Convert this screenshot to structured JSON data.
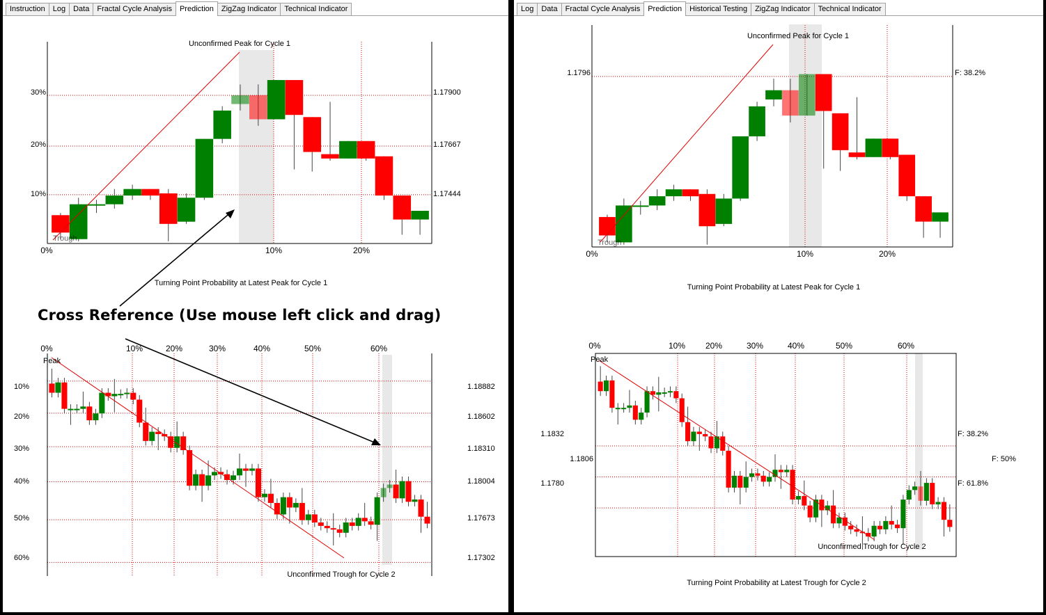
{
  "left": {
    "tabs": [
      "Instruction",
      "Log",
      "Data",
      "Fractal Cycle Analysis",
      "Prediction",
      "ZigZag Indicator",
      "Technical Indicator"
    ],
    "active_tab": "Prediction",
    "top_chart": {
      "title": "Unconfirmed Peak for Cycle 1",
      "caption": "Turning Point Probability at Latest Peak for Cycle 1",
      "start_label": "Trough",
      "y_left": [
        "30%",
        "20%",
        "10%"
      ],
      "y_right": [
        "1.17900",
        "1.17667",
        "1.17444"
      ],
      "x_ticks": [
        "0%",
        "10%",
        "20%"
      ]
    },
    "bottom_chart": {
      "title": "Unconfirmed Trough for Cycle 2",
      "start_label": "Peak",
      "x_ticks": [
        "0%",
        "10%",
        "20%",
        "30%",
        "40%",
        "50%",
        "60%"
      ],
      "y_left": [
        "10%",
        "20%",
        "30%",
        "40%",
        "50%",
        "60%"
      ],
      "y_right": [
        "1.18882",
        "1.18602",
        "1.18310",
        "1.18004",
        "1.17673",
        "1.17302"
      ]
    },
    "annotation": "Cross Reference (Use mouse left click and drag)"
  },
  "right": {
    "tabs": [
      "Log",
      "Data",
      "Fractal Cycle Analysis",
      "Prediction",
      "Historical Testing",
      "ZigZag Indicator",
      "Technical Indicator"
    ],
    "active_tab": "Prediction",
    "top_chart": {
      "title": "Unconfirmed Peak for Cycle 1",
      "caption": "Turning Point Probability at Latest Peak for Cycle 1",
      "start_label": "Trough",
      "y_left": [
        "1.1796"
      ],
      "fib": [
        "F: 38.2%"
      ],
      "x_ticks": [
        "0%",
        "10%",
        "20%"
      ]
    },
    "bottom_chart": {
      "title": "Unconfirmed Trough for Cycle 2",
      "caption": "Turning Point Probability at Latest Trough for Cycle 2",
      "start_label": "Peak",
      "x_ticks": [
        "0%",
        "10%",
        "20%",
        "30%",
        "40%",
        "50%",
        "60%"
      ],
      "y_left": [
        "1.1832",
        "1.1806",
        "1.1780"
      ],
      "fib": [
        "F: 38.2%",
        "F: 50%",
        "F: 61.8%"
      ]
    }
  },
  "colors": {
    "bull": "#008000",
    "bear": "#ff0000",
    "grid": "#d00000",
    "highlight": "#e8e8e8"
  },
  "chart_data": [
    {
      "type": "candlestick",
      "title": "Unconfirmed Peak for Cycle 1",
      "xlabel": "Turning Point Probability at Latest Peak for Cycle 1",
      "candles": [
        {
          "open": 1.1735,
          "close": 1.1727,
          "high": 1.1736,
          "low": 1.1724
        },
        {
          "open": 1.1724,
          "close": 1.174,
          "high": 1.1743,
          "low": 1.1723
        },
        {
          "open": 1.174,
          "close": 1.174,
          "high": 1.1742,
          "low": 1.1736
        },
        {
          "open": 1.174,
          "close": 1.1744,
          "high": 1.1747,
          "low": 1.1738
        },
        {
          "open": 1.1744,
          "close": 1.1747,
          "high": 1.1749,
          "low": 1.1742
        },
        {
          "open": 1.1747,
          "close": 1.1744,
          "high": 1.1747,
          "low": 1.1742
        },
        {
          "open": 1.1745,
          "close": 1.1731,
          "high": 1.1747,
          "low": 1.1723
        },
        {
          "open": 1.1732,
          "close": 1.1743,
          "high": 1.1745,
          "low": 1.1731
        },
        {
          "open": 1.1743,
          "close": 1.177,
          "high": 1.177,
          "low": 1.1742
        },
        {
          "open": 1.177,
          "close": 1.1783,
          "high": 1.1785,
          "low": 1.1768
        },
        {
          "open": 1.1786,
          "close": 1.179,
          "high": 1.1795,
          "low": 1.1783
        },
        {
          "open": 1.179,
          "close": 1.1779,
          "high": 1.1795,
          "low": 1.1776
        },
        {
          "open": 1.1779,
          "close": 1.1797,
          "high": 1.1797,
          "low": 1.1779
        },
        {
          "open": 1.1797,
          "close": 1.1781,
          "high": 1.1797,
          "low": 1.1756
        },
        {
          "open": 1.178,
          "close": 1.1764,
          "high": 1.178,
          "low": 1.1755
        },
        {
          "open": 1.1763,
          "close": 1.1761,
          "high": 1.1787,
          "low": 1.176
        },
        {
          "open": 1.1761,
          "close": 1.1769,
          "high": 1.1769,
          "low": 1.1761
        },
        {
          "open": 1.1769,
          "close": 1.1761,
          "high": 1.1769,
          "low": 1.176
        },
        {
          "open": 1.1762,
          "close": 1.1744,
          "high": 1.1762,
          "low": 1.1742
        },
        {
          "open": 1.1744,
          "close": 1.1733,
          "high": 1.1744,
          "low": 1.1726
        },
        {
          "open": 1.1733,
          "close": 1.1737,
          "high": 1.1737,
          "low": 1.1726
        }
      ],
      "y_ticks": [
        1.179,
        1.17667,
        1.17444
      ],
      "percent_ticks": [
        "0%",
        "10%",
        "20%"
      ]
    },
    {
      "type": "candlestick",
      "title": "Unconfirmed Trough for Cycle 2",
      "xlabel": "Turning Point Probability at Latest Trough for Cycle 2",
      "closes": [
        1.1878,
        1.1887,
        1.1864,
        1.1864,
        1.1864,
        1.1866,
        1.1854,
        1.186,
        1.1878,
        1.1875,
        1.1877,
        1.1877,
        1.1878,
        1.1872,
        1.1852,
        1.1836,
        1.1844,
        1.1842,
        1.184,
        1.183,
        1.184,
        1.1828,
        1.1797,
        1.1807,
        1.1797,
        1.1806,
        1.1809,
        1.1807,
        1.1802,
        1.1806,
        1.1812,
        1.181,
        1.1812,
        1.1787,
        1.179,
        1.1782,
        1.1772,
        1.1787,
        1.1778,
        1.1782,
        1.1767,
        1.1772,
        1.1765,
        1.1762,
        1.176,
        1.1759,
        1.1756,
        1.1765,
        1.1762,
        1.1769,
        1.1766,
        1.1763,
        1.1787,
        1.1795,
        1.1798,
        1.1786,
        1.1801,
        1.1783,
        1.1785,
        1.177,
        1.1764
      ],
      "y_ticks": [
        1.18882,
        1.18602,
        1.1831,
        1.18004,
        1.17673,
        1.17302
      ],
      "percent_ticks": [
        "0%",
        "10%",
        "20%",
        "30%",
        "40%",
        "50%",
        "60%"
      ],
      "fibonacci": [
        {
          "label": "F: 38.2%",
          "value": 1.1832
        },
        {
          "label": "F: 50%",
          "value": 1.1806
        },
        {
          "label": "F: 61.8%",
          "value": 1.178
        }
      ]
    }
  ]
}
